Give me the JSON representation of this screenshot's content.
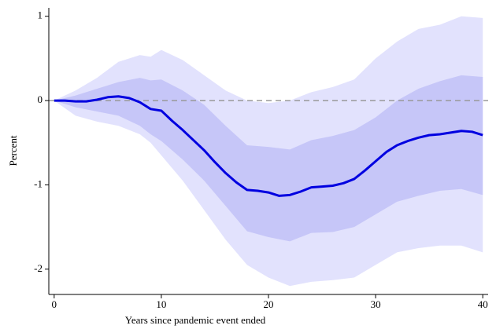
{
  "chart_data": {
    "type": "line",
    "xlabel": "Years since pandemic event ended",
    "ylabel": "Percent",
    "xlim": [
      -0.5,
      40.5
    ],
    "ylim": [
      -2.3,
      1.1
    ],
    "xticks": [
      0,
      10,
      20,
      30,
      40
    ],
    "yticks": [
      -2,
      -1,
      0,
      1
    ],
    "hline": 0,
    "hline_color": "#999999",
    "bands": [
      {
        "color": "#e2e2fd",
        "x": [
          0,
          2,
          4,
          6,
          8,
          9,
          10,
          12,
          14,
          16,
          18,
          20,
          22,
          24,
          26,
          28,
          30,
          32,
          34,
          36,
          38,
          40
        ],
        "upper": [
          0,
          0.12,
          0.27,
          0.46,
          0.54,
          0.52,
          0.6,
          0.48,
          0.3,
          0.12,
          0.0,
          -0.03,
          0.0,
          0.1,
          0.16,
          0.25,
          0.5,
          0.7,
          0.85,
          0.9,
          1.0,
          0.98
        ],
        "lower": [
          0,
          -0.18,
          -0.25,
          -0.3,
          -0.4,
          -0.5,
          -0.65,
          -0.95,
          -1.3,
          -1.65,
          -1.95,
          -2.1,
          -2.2,
          -2.15,
          -2.13,
          -2.1,
          -1.95,
          -1.8,
          -1.75,
          -1.72,
          -1.72,
          -1.8
        ]
      },
      {
        "color": "#c6c6f8",
        "x": [
          0,
          2,
          4,
          6,
          8,
          9,
          10,
          12,
          14,
          16,
          18,
          20,
          22,
          24,
          26,
          28,
          30,
          32,
          34,
          36,
          38,
          40
        ],
        "upper": [
          0,
          0.06,
          0.14,
          0.22,
          0.27,
          0.24,
          0.25,
          0.12,
          -0.05,
          -0.3,
          -0.53,
          -0.55,
          -0.58,
          -0.47,
          -0.42,
          -0.35,
          -0.2,
          0.0,
          0.14,
          0.23,
          0.3,
          0.28
        ],
        "lower": [
          0,
          -0.08,
          -0.13,
          -0.18,
          -0.3,
          -0.4,
          -0.48,
          -0.7,
          -0.95,
          -1.25,
          -1.55,
          -1.62,
          -1.67,
          -1.57,
          -1.56,
          -1.5,
          -1.35,
          -1.2,
          -1.13,
          -1.07,
          -1.05,
          -1.12
        ]
      }
    ],
    "series": [
      {
        "color": "#0000e0",
        "x": [
          0,
          1,
          2,
          3,
          4,
          5,
          6,
          7,
          8,
          9,
          10,
          11,
          12,
          13,
          14,
          15,
          16,
          17,
          18,
          19,
          20,
          21,
          22,
          23,
          24,
          25,
          26,
          27,
          28,
          29,
          30,
          31,
          32,
          33,
          34,
          35,
          36,
          37,
          38,
          39,
          40
        ],
        "values": [
          0,
          0,
          -0.01,
          -0.01,
          0.01,
          0.04,
          0.05,
          0.03,
          -0.02,
          -0.1,
          -0.12,
          -0.24,
          -0.35,
          -0.47,
          -0.59,
          -0.73,
          -0.86,
          -0.97,
          -1.06,
          -1.07,
          -1.09,
          -1.13,
          -1.12,
          -1.08,
          -1.03,
          -1.02,
          -1.01,
          -0.98,
          -0.93,
          -0.83,
          -0.72,
          -0.61,
          -0.53,
          -0.48,
          -0.44,
          -0.41,
          -0.4,
          -0.38,
          -0.36,
          -0.37,
          -0.41
        ]
      }
    ]
  }
}
